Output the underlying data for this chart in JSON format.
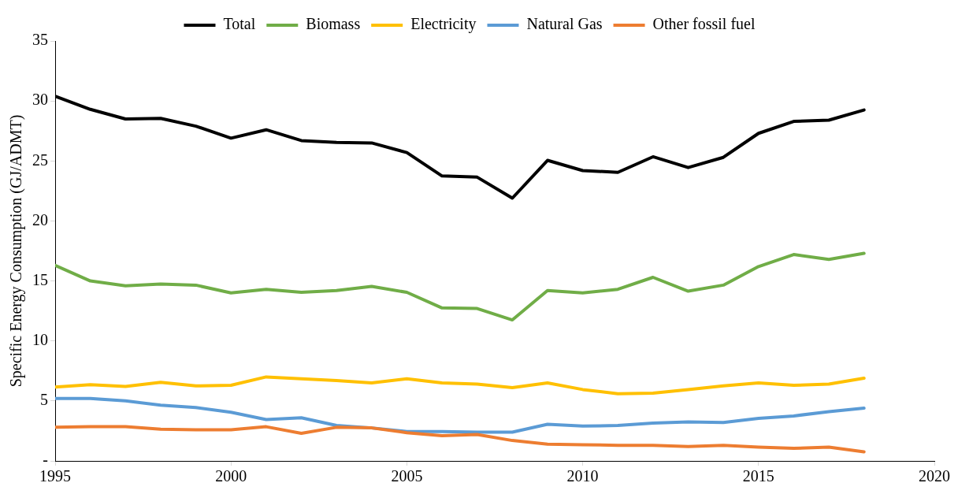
{
  "chart_data": {
    "type": "line",
    "ylabel": "Specific Energy Consumption (GJ/ADMT)",
    "x": [
      1995,
      1996,
      1997,
      1998,
      1999,
      2000,
      2001,
      2002,
      2003,
      2004,
      2005,
      2006,
      2007,
      2008,
      2009,
      2010,
      2011,
      2012,
      2013,
      2014,
      2015,
      2016,
      2017,
      2018
    ],
    "series": [
      {
        "name": "Total",
        "color": "#000000",
        "values": [
          30.4,
          29.3,
          28.5,
          28.55,
          27.9,
          26.9,
          27.6,
          26.7,
          26.55,
          26.5,
          25.7,
          23.75,
          23.65,
          21.9,
          25.05,
          24.2,
          24.05,
          25.35,
          24.45,
          25.3,
          27.3,
          28.3,
          28.4,
          29.25
        ]
      },
      {
        "name": "Biomass",
        "color": "#70ad47",
        "values": [
          16.3,
          15.0,
          14.6,
          14.75,
          14.65,
          14.0,
          14.3,
          14.05,
          14.2,
          14.55,
          14.05,
          12.75,
          12.7,
          11.75,
          14.2,
          14.0,
          14.3,
          15.3,
          14.15,
          14.65,
          16.2,
          17.2,
          16.8,
          17.3
        ]
      },
      {
        "name": "Electricity",
        "color": "#ffc000",
        "values": [
          6.15,
          6.35,
          6.2,
          6.55,
          6.25,
          6.3,
          7.0,
          6.85,
          6.7,
          6.5,
          6.85,
          6.5,
          6.4,
          6.1,
          6.5,
          5.95,
          5.6,
          5.65,
          5.95,
          6.25,
          6.5,
          6.3,
          6.4,
          6.9
        ]
      },
      {
        "name": "Natural Gas",
        "color": "#5b9bd5",
        "values": [
          5.2,
          5.2,
          5.0,
          4.65,
          4.45,
          4.05,
          3.45,
          3.6,
          2.95,
          2.75,
          2.45,
          2.45,
          2.4,
          2.4,
          3.05,
          2.9,
          2.95,
          3.15,
          3.25,
          3.2,
          3.55,
          3.75,
          4.1,
          4.4
        ]
      },
      {
        "name": "Other fossil fuel",
        "color": "#ed7d31",
        "values": [
          2.8,
          2.85,
          2.85,
          2.65,
          2.6,
          2.6,
          2.85,
          2.3,
          2.8,
          2.75,
          2.35,
          2.1,
          2.2,
          1.7,
          1.4,
          1.35,
          1.3,
          1.3,
          1.2,
          1.3,
          1.15,
          1.05,
          1.15,
          0.75
        ]
      }
    ],
    "xlim": [
      1995,
      2020
    ],
    "xticks": [
      1995,
      2000,
      2005,
      2010,
      2015,
      2020
    ],
    "ylim": [
      0,
      35
    ],
    "yticks": [
      {
        "value": 0,
        "label": "-"
      },
      5,
      10,
      15,
      20,
      25,
      30,
      35
    ],
    "grid": false,
    "legend": "top",
    "marker": "none",
    "line_style": "solid"
  }
}
